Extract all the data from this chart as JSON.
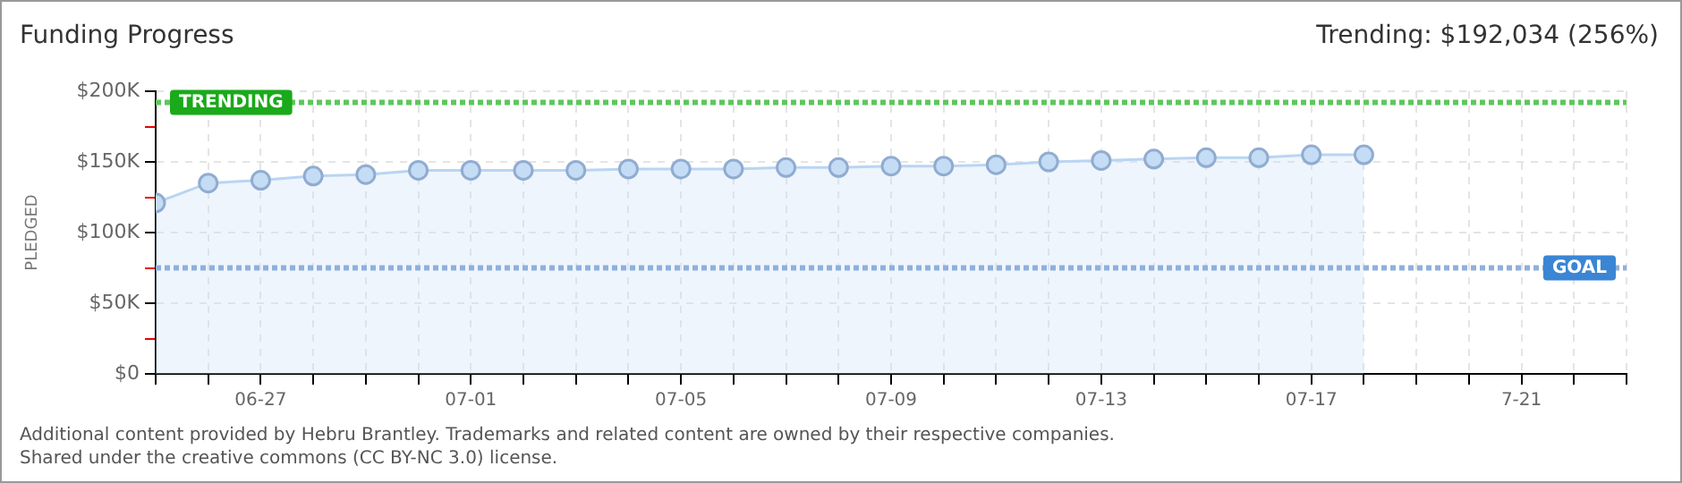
{
  "chart_data": {
    "type": "area",
    "title": "Funding Progress",
    "subtitle": "Trending: $192,034 (256%)",
    "ylabel": "PLEDGED",
    "x": [
      "--06-25",
      "--06-26",
      "--06-27",
      "--06-28",
      "--06-29",
      "--06-30",
      "--07-01",
      "--07-02",
      "--07-03",
      "--07-04",
      "--07-05",
      "--07-06",
      "--07-07",
      "--07-08",
      "--07-09",
      "--07-10",
      "--07-11",
      "--07-12",
      "--07-13",
      "--07-14",
      "--07-15",
      "--07-16",
      "--07-17",
      "--07-18"
    ],
    "series": [
      {
        "color": "#c5dcf5",
        "values": [
          121000,
          135000,
          137000,
          140000,
          141000,
          144000,
          144000,
          144000,
          144000,
          145000,
          145000,
          145000,
          146000,
          146000,
          147000,
          147000,
          148000,
          150000,
          151000,
          152000,
          153000,
          153000,
          155000,
          155000
        ]
      }
    ],
    "xlim": [
      "--06-25",
      "--07-23"
    ],
    "xticks": [
      {
        "value": "--06-25",
        "label": null
      },
      {
        "value": "--06-26",
        "label": null
      },
      {
        "value": "--06-27",
        "label": "06-27"
      },
      {
        "value": "--06-28",
        "label": null
      },
      {
        "value": "--06-29",
        "label": null
      },
      {
        "value": "--06-30",
        "label": null
      },
      {
        "value": "--07-01",
        "label": "07-01"
      },
      {
        "value": "--07-02",
        "label": null
      },
      {
        "value": "--07-03",
        "label": null
      },
      {
        "value": "--07-04",
        "label": null
      },
      {
        "value": "--07-05",
        "label": "07-05"
      },
      {
        "value": "--07-06",
        "label": null
      },
      {
        "value": "--07-07",
        "label": null
      },
      {
        "value": "--07-08",
        "label": null
      },
      {
        "value": "--07-09",
        "label": "07-09"
      },
      {
        "value": "--07-10",
        "label": null
      },
      {
        "value": "--07-11",
        "label": null
      },
      {
        "value": "--07-12",
        "label": null
      },
      {
        "value": "--07-13",
        "label": "07-13"
      },
      {
        "value": "--07-14",
        "label": null
      },
      {
        "value": "--07-15",
        "label": null
      },
      {
        "value": "--07-16",
        "label": null
      },
      {
        "value": "--07-17",
        "label": "07-17"
      },
      {
        "value": "--07-18",
        "label": null
      },
      {
        "value": "--07-19",
        "label": null
      },
      {
        "value": "--07-20",
        "label": null
      },
      {
        "value": "--07-21",
        "label": "7-21"
      },
      {
        "value": "--07-22",
        "label": null
      },
      {
        "value": "--07-23",
        "label": null
      }
    ],
    "ylim": [
      0,
      200000
    ],
    "yticks": [
      {
        "value": 0,
        "label": "$0"
      },
      {
        "value": 25000,
        "label": null
      },
      {
        "value": 50000,
        "label": "$50K"
      },
      {
        "value": 75000,
        "label": null
      },
      {
        "value": 100000,
        "label": "$100K"
      },
      {
        "value": 125000,
        "label": null
      },
      {
        "value": 150000,
        "label": "$150K"
      },
      {
        "value": 175000,
        "label": null
      },
      {
        "value": 200000,
        "label": "$200K"
      }
    ],
    "ref_lines": [
      {
        "axis": "y",
        "value": 192034,
        "label": "TRENDING",
        "color": "#5cc85c",
        "line_style": "dotted"
      },
      {
        "axis": "y",
        "value": 75000,
        "label": "GOAL",
        "color": "#8fb0dc",
        "line_style": "dotted"
      }
    ],
    "grid": true,
    "marker": "circle",
    "annotations": [
      "Additional content provided by Hebru Brantley. Trademarks and related content are owned by their respective companies.",
      "Shared under the creative commons (CC BY-NC 3.0) license."
    ]
  }
}
